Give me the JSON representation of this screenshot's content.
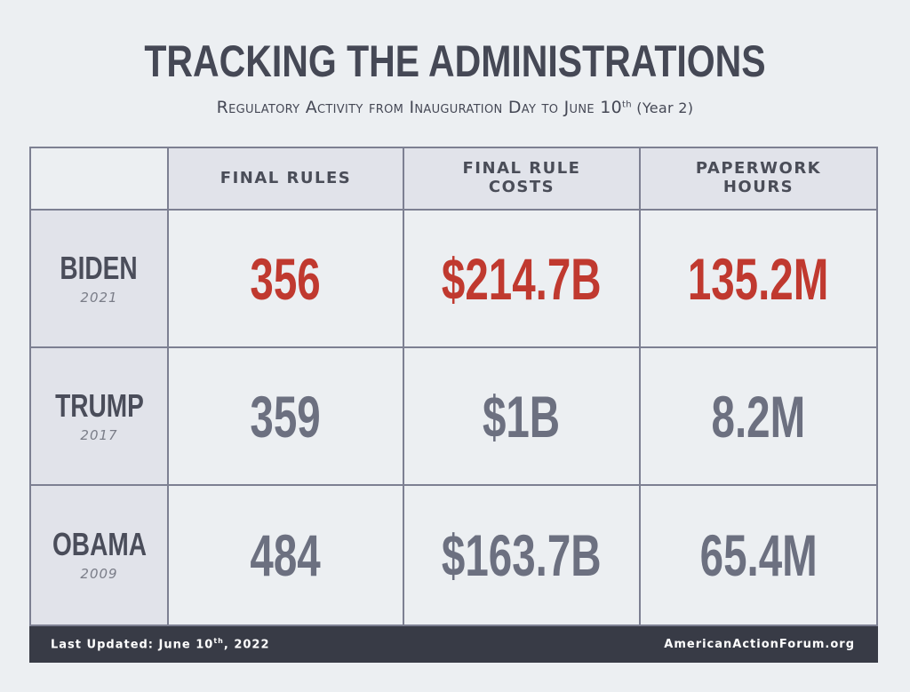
{
  "title": "TRACKING THE ADMINISTRATIONS",
  "subtitle": {
    "prefix": "Regulatory Activity from Inauguration Day to June 10",
    "sup": "th",
    "suffix": " (Year 2)"
  },
  "colors": {
    "highlight": "#c0392f",
    "normal": "#6c7080",
    "footer_bg": "#383b46"
  },
  "chart_data": {
    "type": "table",
    "columns": [
      "FINAL RULES",
      "FINAL RULE COSTS",
      "PAPERWORK HOURS"
    ],
    "column_lines": [
      [
        "FINAL RULES"
      ],
      [
        "FINAL RULE",
        "COSTS"
      ],
      [
        "PAPERWORK",
        "HOURS"
      ]
    ],
    "rows": [
      {
        "name": "BIDEN",
        "year": "2021",
        "highlight": true,
        "values": [
          "356",
          "$214.7B",
          "135.2M"
        ]
      },
      {
        "name": "TRUMP",
        "year": "2017",
        "highlight": false,
        "values": [
          "359",
          "$1B",
          "8.2M"
        ]
      },
      {
        "name": "OBAMA",
        "year": "2009",
        "highlight": false,
        "values": [
          "484",
          "$163.7B",
          "65.4M"
        ]
      }
    ],
    "numeric": {
      "final_rules": [
        356,
        359,
        484
      ],
      "final_rule_costs_billion_usd": [
        214.7,
        1,
        163.7
      ],
      "paperwork_hours_million": [
        135.2,
        8.2,
        65.4
      ]
    }
  },
  "footer": {
    "updated_prefix": "Last Updated: June 10",
    "updated_sup": "th",
    "updated_suffix": ", 2022",
    "source": "AmericanActionForum.org"
  }
}
